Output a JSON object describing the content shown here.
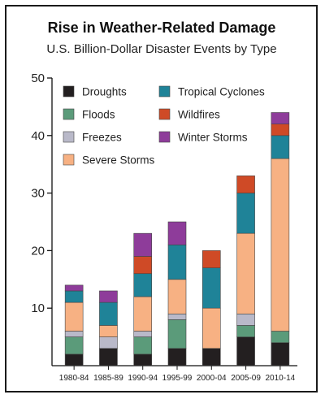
{
  "header": {
    "title": "Rise in Weather-Related Damage",
    "subtitle": "U.S. Billion-Dollar Disaster Events by Type"
  },
  "colors": {
    "Droughts": "#231f20",
    "Floods": "#5b9b7a",
    "Freezes": "#b9b9c9",
    "Severe Storms": "#f7b183",
    "Tropical Cyclones": "#1f8398",
    "Wildfires": "#cf4a26",
    "Winter Storms": "#8e3c9a"
  },
  "chart_data": {
    "type": "bar",
    "stacked": true,
    "categories": [
      "1980-84",
      "1985-89",
      "1990-94",
      "1995-99",
      "2000-04",
      "2005-09",
      "2010-14"
    ],
    "series": [
      {
        "name": "Droughts",
        "values": [
          2,
          3,
          2,
          3,
          3,
          5,
          4
        ]
      },
      {
        "name": "Floods",
        "values": [
          3,
          0,
          3,
          5,
          0,
          2,
          2
        ]
      },
      {
        "name": "Freezes",
        "values": [
          1,
          2,
          1,
          1,
          0,
          2,
          0
        ]
      },
      {
        "name": "Severe Storms",
        "values": [
          5,
          2,
          6,
          6,
          7,
          14,
          30
        ]
      },
      {
        "name": "Tropical Cyclones",
        "values": [
          2,
          4,
          4,
          6,
          7,
          7,
          4
        ]
      },
      {
        "name": "Wildfires",
        "values": [
          0,
          0,
          3,
          0,
          3,
          3,
          2
        ]
      },
      {
        "name": "Winter Storms",
        "values": [
          1,
          2,
          4,
          4,
          0,
          0,
          2
        ]
      }
    ],
    "ylim": [
      0,
      50
    ],
    "yticks": [
      10,
      20,
      30,
      40,
      50
    ],
    "legend": {
      "placement": "top-left-inside",
      "columns": [
        [
          "Droughts",
          "Floods",
          "Freezes",
          "Severe Storms"
        ],
        [
          "Tropical Cyclones",
          "Wildfires",
          "Winter Storms"
        ]
      ]
    }
  }
}
